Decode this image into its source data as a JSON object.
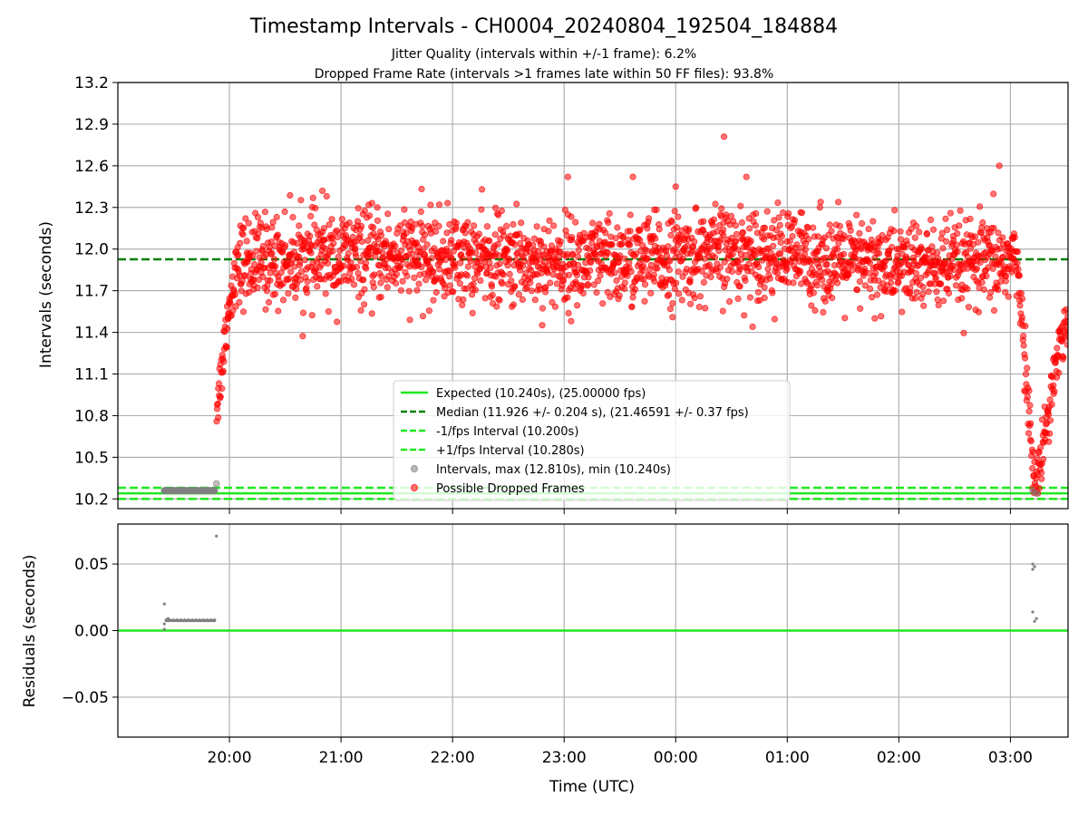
{
  "title": "Timestamp Intervals - CH0004_20240804_192504_184884",
  "subtitle_lines": [
    "Jitter Quality (intervals within +/-1 frame): 6.2%",
    "Dropped Frame Rate (intervals >1 frames late within 50 FF files): 93.8%"
  ],
  "chart_data": [
    {
      "type": "scatter",
      "ylabel": "Intervals (seconds)",
      "xlim": [
        "19:00",
        "03:31"
      ],
      "ylim": [
        10.13,
        13.2
      ],
      "yticks": [
        "10.2",
        "10.5",
        "10.8",
        "11.1",
        "11.4",
        "11.7",
        "12.0",
        "12.3",
        "12.6",
        "12.9",
        "13.2"
      ],
      "grid": true,
      "legend_position": "center-bottom",
      "reference_lines": [
        {
          "name": "Expected (10.240s), (25.00000 fps)",
          "y": 10.24,
          "style": "solid",
          "color": "#1ee81e"
        },
        {
          "name": "Median (11.926 +/- 0.204 s), (21.46591 +/- 0.37 fps)",
          "y": 11.926,
          "style": "dashed",
          "color": "#008000"
        },
        {
          "name": "-1/fps Interval (10.200s)",
          "y": 10.2,
          "style": "dashed",
          "color": "#1ee81e"
        },
        {
          "name": "+1/fps Interval (10.280s)",
          "y": 10.28,
          "style": "dashed",
          "color": "#1ee81e"
        }
      ],
      "series": [
        {
          "name": "Intervals, max (12.810s), min (10.240s)",
          "color": "#808080",
          "points": [
            [
              "19:25",
              10.26
            ],
            [
              "19:28",
              10.26
            ],
            [
              "19:31",
              10.26
            ],
            [
              "19:34",
              10.26
            ],
            [
              "19:37",
              10.26
            ],
            [
              "19:40",
              10.26
            ],
            [
              "19:43",
              10.26
            ],
            [
              "19:46",
              10.26
            ],
            [
              "19:49",
              10.26
            ],
            [
              "19:52",
              10.26
            ],
            [
              "19:53",
              10.31
            ],
            [
              "03:12",
              10.26
            ],
            [
              "03:14",
              10.24
            ]
          ]
        },
        {
          "name": "Possible Dropped Frames",
          "color": "#ff0000",
          "trend": [
            [
              "19:53",
              10.85
            ],
            [
              "19:56",
              11.15
            ],
            [
              "19:58",
              11.42
            ],
            [
              "20:00",
              11.6
            ],
            [
              "20:03",
              11.82
            ],
            [
              "20:08",
              11.92
            ],
            [
              "20:20",
              11.92
            ],
            [
              "21:00",
              11.94
            ],
            [
              "21:30",
              11.95
            ],
            [
              "22:00",
              11.93
            ],
            [
              "22:30",
              11.92
            ],
            [
              "23:00",
              11.9
            ],
            [
              "23:30",
              11.9
            ],
            [
              "00:00",
              11.93
            ],
            [
              "00:30",
              11.98
            ],
            [
              "01:00",
              11.96
            ],
            [
              "01:30",
              11.9
            ],
            [
              "02:00",
              11.88
            ],
            [
              "02:30",
              11.87
            ],
            [
              "02:55",
              11.9
            ],
            [
              "03:02",
              11.95
            ],
            [
              "03:05",
              11.7
            ],
            [
              "03:07",
              11.4
            ],
            [
              "03:09",
              11.0
            ],
            [
              "03:11",
              10.6
            ],
            [
              "03:13",
              10.35
            ],
            [
              "03:15",
              10.35
            ],
            [
              "03:18",
              10.65
            ],
            [
              "03:21",
              10.9
            ],
            [
              "03:24",
              11.15
            ],
            [
              "03:27",
              11.35
            ],
            [
              "03:31",
              11.5
            ]
          ],
          "spread_sd": 0.16,
          "outliers": [
            [
              "00:26",
              12.81
            ],
            [
              "02:54",
              12.6
            ],
            [
              "23:02",
              12.52
            ],
            [
              "23:37",
              12.52
            ],
            [
              "00:38",
              12.52
            ],
            [
              "20:50",
              12.42
            ],
            [
              "00:00",
              12.45
            ]
          ]
        }
      ]
    },
    {
      "type": "scatter",
      "xlabel": "Time (UTC)",
      "ylabel": "Residuals (seconds)",
      "xlim": [
        "19:00",
        "03:31"
      ],
      "ylim": [
        -0.08,
        0.08
      ],
      "yticks": [
        "−0.05",
        "0.00",
        "0.05"
      ],
      "xticks": [
        "20:00",
        "21:00",
        "22:00",
        "23:00",
        "00:00",
        "01:00",
        "02:00",
        "03:00"
      ],
      "grid": true,
      "reference_lines": [
        {
          "y": 0.0,
          "style": "solid",
          "color": "#1ee81e"
        }
      ],
      "series": [
        {
          "color": "#808080",
          "points": [
            [
              "19:25",
              0.02
            ],
            [
              "19:25",
              0.001
            ],
            [
              "19:25",
              0.005
            ],
            [
              "19:26",
              0.008
            ],
            [
              "19:27",
              0.009
            ],
            [
              "19:28",
              0.008
            ],
            [
              "19:30",
              0.008
            ],
            [
              "19:32",
              0.008
            ],
            [
              "19:34",
              0.008
            ],
            [
              "19:36",
              0.008
            ],
            [
              "19:38",
              0.008
            ],
            [
              "19:40",
              0.008
            ],
            [
              "19:42",
              0.008
            ],
            [
              "19:44",
              0.008
            ],
            [
              "19:46",
              0.008
            ],
            [
              "19:48",
              0.008
            ],
            [
              "19:50",
              0.008
            ],
            [
              "19:52",
              0.008
            ],
            [
              "19:53",
              0.071
            ],
            [
              "03:12",
              0.05
            ],
            [
              "03:12",
              0.046
            ],
            [
              "03:13",
              0.048
            ],
            [
              "03:12",
              0.014
            ],
            [
              "03:13",
              0.007
            ],
            [
              "03:14",
              0.009
            ]
          ]
        }
      ]
    }
  ]
}
